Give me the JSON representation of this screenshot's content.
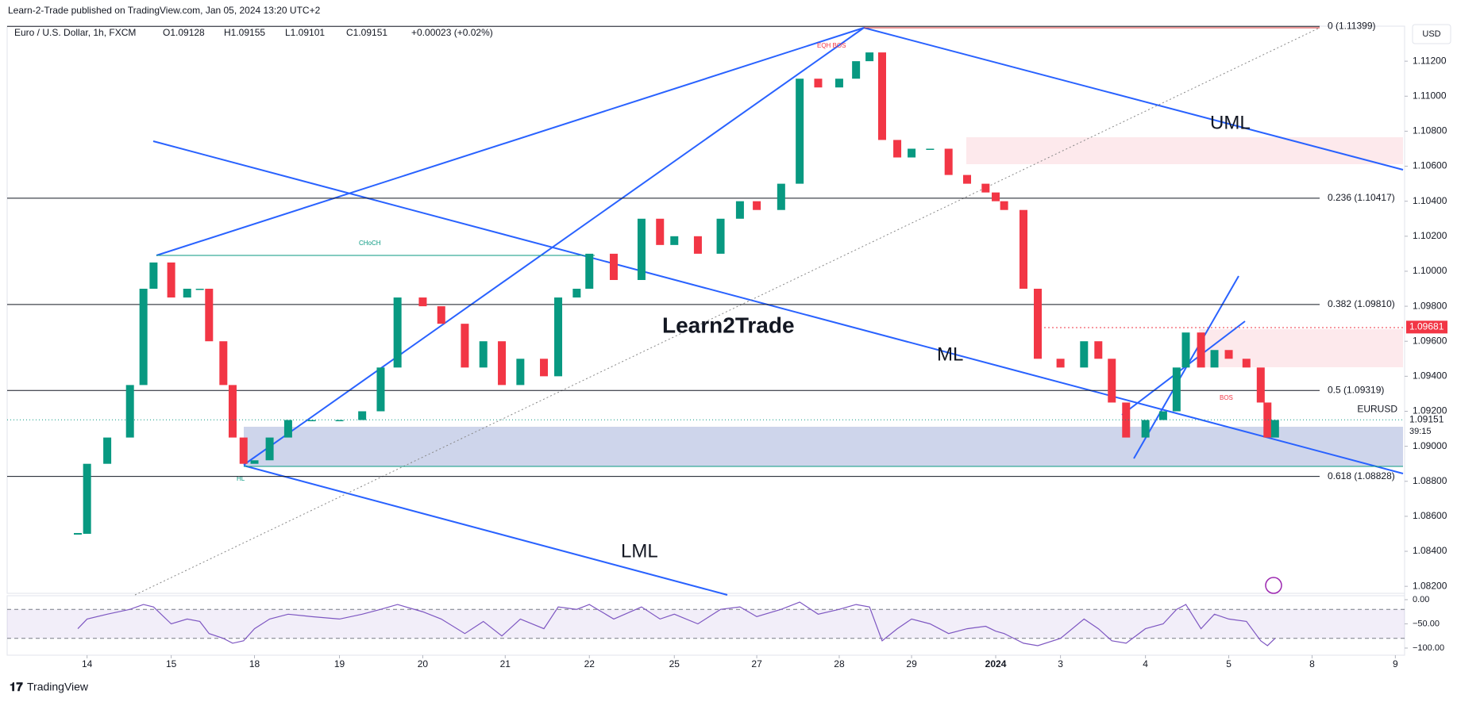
{
  "header": {
    "publisher": "Learn-2-Trade published on TradingView.com, Jan 05, 2024 13:20 UTC+2"
  },
  "chart_data": {
    "type": "candlestick",
    "title": "Euro / U.S. Dollar, 1h, FXCM",
    "ohlc_labels": [
      "O1.09128",
      "H1.09155",
      "L1.09101",
      "C1.09151",
      "+0.00023 (+0.02%)"
    ],
    "currency": "USD",
    "up_color": "#089981",
    "down_color": "#f23645",
    "x": [
      -0.11,
      0,
      0.24,
      0.51,
      0.67,
      0.79,
      1,
      1.19,
      1.34,
      1.45,
      1.62,
      1.73,
      1.86,
      1.99,
      2.17,
      2.39,
      2.67,
      3,
      3.27,
      3.49,
      3.69,
      3.99,
      4.21,
      4.49,
      4.71,
      4.93,
      5.15,
      5.43,
      5.6,
      5.82,
      5.97,
      6.26,
      6.59,
      6.81,
      6.98,
      7.26,
      7.53,
      7.76,
      7.96,
      8.25,
      8.47,
      8.69,
      8.94,
      9.14,
      9.3,
      9.45,
      9.63,
      9.8,
      10.02,
      10.24,
      10.46,
      10.68,
      10.8,
      10.9,
      11.13,
      11.3,
      11.57,
      11.85,
      12.02,
      12.18,
      12.35,
      12.58,
      12.79,
      12.95,
      13.06,
      13.24,
      13.4,
      13.57,
      13.78,
      13.95,
      14.03,
      14.12
    ],
    "close": [
      1.085,
      1.089,
      1.0905,
      1.0935,
      1.099,
      1.1005,
      1.0985,
      1.099,
      1.099,
      1.096,
      1.0935,
      1.0905,
      1.089,
      1.0892,
      1.0905,
      1.0915,
      1.0915,
      1.0915,
      1.092,
      1.0945,
      1.0985,
      1.098,
      1.097,
      1.0945,
      1.096,
      1.0935,
      1.095,
      1.094,
      1.0985,
      1.099,
      1.101,
      1.0995,
      1.103,
      1.1015,
      1.102,
      1.101,
      1.103,
      1.104,
      1.1035,
      1.105,
      1.111,
      1.1105,
      1.111,
      1.112,
      1.1125,
      1.1075,
      1.1065,
      1.107,
      1.107,
      1.1055,
      1.105,
      1.1045,
      1.104,
      1.1035,
      1.099,
      1.095,
      1.0945,
      1.096,
      1.095,
      1.0925,
      1.0905,
      1.0915,
      1.092,
      1.0945,
      1.0965,
      1.0945,
      1.0955,
      1.095,
      1.0945,
      1.0925,
      1.0905,
      1.0915
    ],
    "xlim": [
      -0.95,
      15.66
    ],
    "xticks": [
      {
        "value": 0,
        "label": "14"
      },
      {
        "value": 1,
        "label": "15"
      },
      {
        "value": 1.99,
        "label": "18"
      },
      {
        "value": 3,
        "label": "19"
      },
      {
        "value": 3.99,
        "label": "20"
      },
      {
        "value": 4.97,
        "label": "21"
      },
      {
        "value": 5.97,
        "label": "22"
      },
      {
        "value": 6.98,
        "label": "25"
      },
      {
        "value": 7.96,
        "label": "27"
      },
      {
        "value": 8.94,
        "label": "28"
      },
      {
        "value": 9.8,
        "label": "29"
      },
      {
        "value": 10.8,
        "label": "2024"
      },
      {
        "value": 11.57,
        "label": "3"
      },
      {
        "value": 12.58,
        "label": "4"
      },
      {
        "value": 13.57,
        "label": "5"
      },
      {
        "value": 14.56,
        "label": "8"
      },
      {
        "value": 15.55,
        "label": "9"
      }
    ],
    "ylim": [
      1.0816,
      1.114
    ],
    "yticks": [
      {
        "value": 1.112,
        "label": "1.11200"
      },
      {
        "value": 1.11,
        "label": "1.11000"
      },
      {
        "value": 1.108,
        "label": "1.10800"
      },
      {
        "value": 1.106,
        "label": "1.10600"
      },
      {
        "value": 1.104,
        "label": "1.10400"
      },
      {
        "value": 1.102,
        "label": "1.10200"
      },
      {
        "value": 1.1,
        "label": "1.10000"
      },
      {
        "value": 1.098,
        "label": "1.09800"
      },
      {
        "value": 1.096,
        "label": "1.09600"
      },
      {
        "value": 1.094,
        "label": "1.09400"
      },
      {
        "value": 1.092,
        "label": "1.09200"
      },
      {
        "value": 1.09,
        "label": "1.09000"
      },
      {
        "value": 1.088,
        "label": "1.08800"
      },
      {
        "value": 1.086,
        "label": "1.08600"
      },
      {
        "value": 1.084,
        "label": "1.08400"
      },
      {
        "value": 1.082,
        "label": "1.08200"
      }
    ],
    "fib_levels": [
      {
        "value": 1.11399,
        "label": "0 (1.11399)"
      },
      {
        "value": 1.10417,
        "label": "0.236 (1.10417)"
      },
      {
        "value": 1.0981,
        "label": "0.382 (1.09810)"
      },
      {
        "value": 1.09319,
        "label": "0.5 (1.09319)"
      },
      {
        "value": 1.08828,
        "label": "0.618 (1.08828)"
      }
    ],
    "marked_level": {
      "value": 1.09681,
      "label": "1.09681"
    },
    "last_price": {
      "value": 1.09151,
      "label": "1.09151"
    },
    "symbol": "EURUSD",
    "countdown": "39:15",
    "annotations": [
      "UML",
      "ML",
      "LML",
      "CHoCH",
      "EQH BOS",
      "BOS",
      "HL",
      "Learn2Trade"
    ],
    "oscillator": {
      "values": [
        -60,
        -40,
        -30,
        -20,
        -10,
        -15,
        -50,
        -40,
        -45,
        -70,
        -80,
        -90,
        -85,
        -60,
        -40,
        -30,
        -35,
        -40,
        -30,
        -20,
        -10,
        -25,
        -40,
        -70,
        -45,
        -75,
        -40,
        -60,
        -15,
        -20,
        -10,
        -40,
        -15,
        -40,
        -30,
        -50,
        -20,
        -15,
        -35,
        -20,
        -5,
        -30,
        -20,
        -10,
        -15,
        -85,
        -60,
        -40,
        -50,
        -70,
        -60,
        -55,
        -65,
        -70,
        -90,
        -95,
        -80,
        -40,
        -60,
        -85,
        -90,
        -60,
        -50,
        -20,
        -10,
        -60,
        -30,
        -40,
        -45,
        -85,
        -95,
        -80
      ],
      "color": "#7e57c2",
      "ylim": [
        -100,
        0
      ],
      "yticks": [
        {
          "value": 0,
          "label": "0.00"
        },
        {
          "value": -50,
          "label": "−50.00"
        },
        {
          "value": -100,
          "label": "−100.00"
        }
      ],
      "bands": [
        -20,
        -80
      ]
    }
  },
  "footer": {
    "brand": "TradingView"
  }
}
